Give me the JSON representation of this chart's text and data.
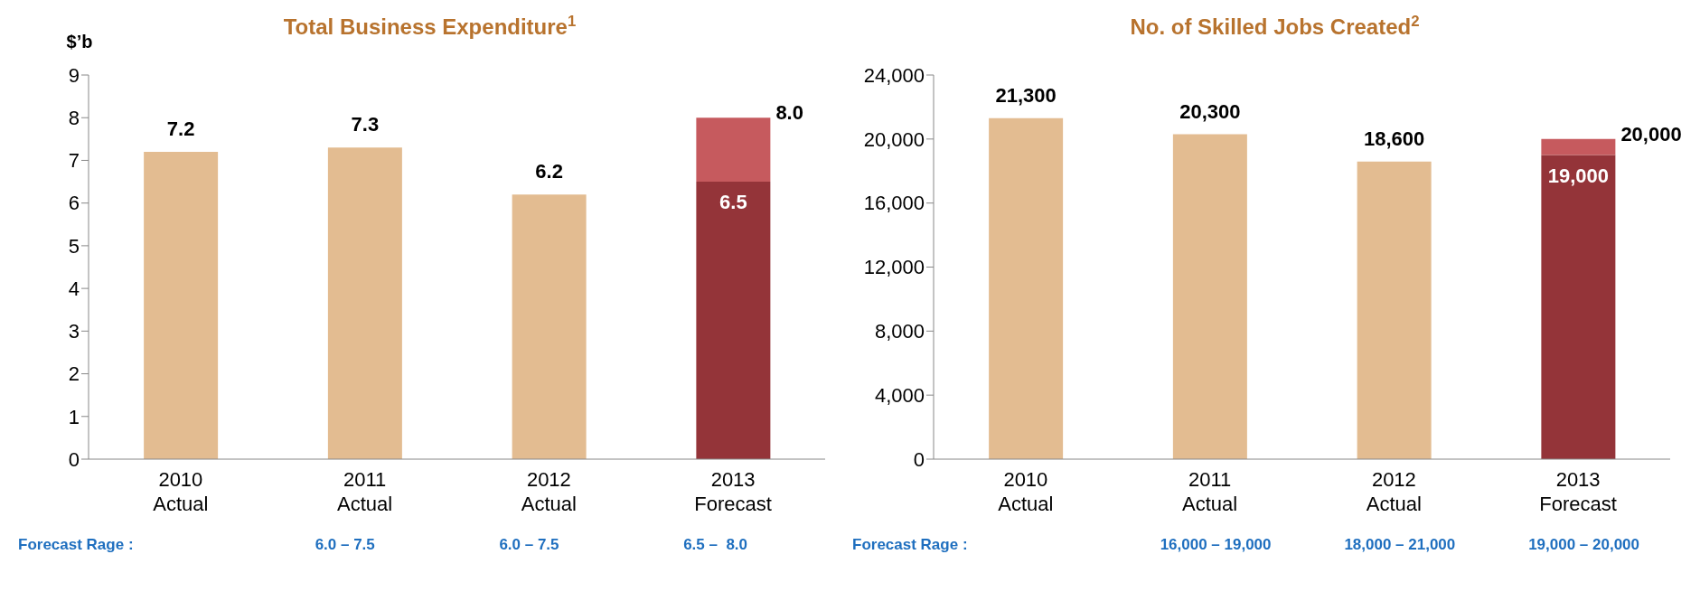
{
  "chart_data": [
    {
      "type": "bar",
      "title": "Total Business Expenditure$^{1}$",
      "ylabel": "$’b",
      "categories": [
        "2010\nActual",
        "2011\nActual",
        "2012\nActual",
        "2013\nForecast"
      ],
      "stacked": true,
      "ylim": [
        0,
        9
      ],
      "yticks": [
        0,
        1,
        2,
        3,
        4,
        5,
        6,
        7,
        8,
        9
      ],
      "grid": false,
      "legend": false,
      "series": [
        {
          "color": "#e3bc91",
          "values": [
            7.2,
            7.3,
            6.2,
            null
          ],
          "value_labels": [
            "7.2",
            "7.3",
            "6.2",
            null
          ]
        },
        {
          "color": "#943439",
          "values": [
            null,
            null,
            null,
            6.5
          ],
          "value_labels": [
            null,
            null,
            null,
            "6.5"
          ]
        },
        {
          "color": "#c65a5e",
          "values": [
            null,
            null,
            null,
            1.5
          ]
        }
      ],
      "totals": [
        null,
        null,
        null,
        "8.0"
      ],
      "annotations": [
        "Forecast Rage :",
        "6.0 – 7.5",
        "6.0 – 7.5",
        "6.5 –  8.0"
      ]
    },
    {
      "type": "bar",
      "title": "No. of Skilled Jobs Created$^{2}$",
      "categories": [
        "2010\nActual",
        "2011\nActual",
        "2012\nActual",
        "2013\nForecast"
      ],
      "stacked": true,
      "ylim": [
        0,
        24000
      ],
      "yticks": [
        {
          "value": 0,
          "label": "0"
        },
        {
          "value": 4000,
          "label": "4,000"
        },
        {
          "value": 8000,
          "label": "8,000"
        },
        {
          "value": 12000,
          "label": "12,000"
        },
        {
          "value": 16000,
          "label": "16,000"
        },
        {
          "value": 20000,
          "label": "20,000"
        },
        {
          "value": 24000,
          "label": "24,000"
        }
      ],
      "grid": false,
      "legend": false,
      "series": [
        {
          "color": "#e3bc91",
          "values": [
            21300,
            20300,
            18600,
            null
          ],
          "value_labels": [
            "21,300",
            "20,300",
            "18,600",
            null
          ]
        },
        {
          "color": "#943439",
          "values": [
            null,
            null,
            null,
            19000
          ],
          "value_labels": [
            null,
            null,
            null,
            "19,000"
          ]
        },
        {
          "color": "#c65a5e",
          "values": [
            null,
            null,
            null,
            1000
          ]
        }
      ],
      "totals": [
        null,
        null,
        null,
        "20,000"
      ],
      "annotations": [
        "Forecast Rage :",
        "16,000 – 19,000",
        "18,000 – 21,000",
        "19,000 – 20,000"
      ]
    }
  ]
}
